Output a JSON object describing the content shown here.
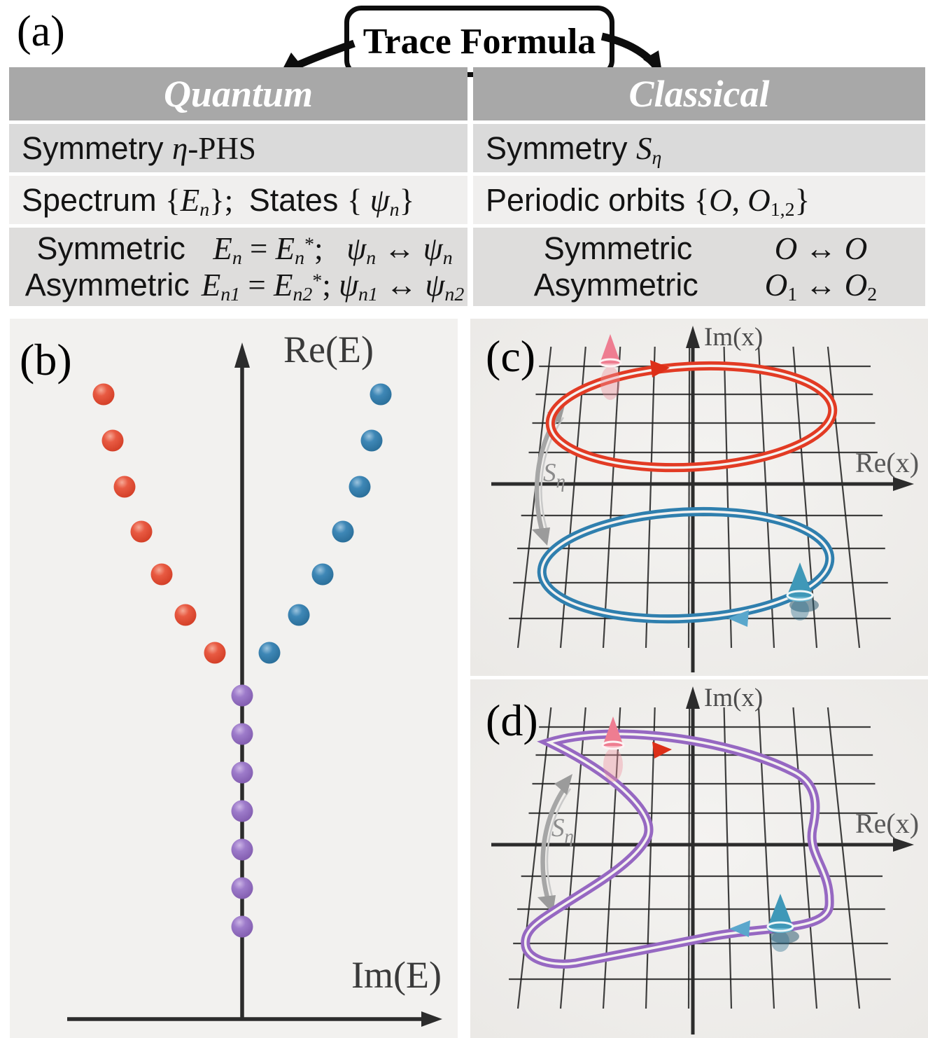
{
  "panel_a": {
    "label": "(a)",
    "box_title": "Trace Formula",
    "quantum": {
      "header": "Quantum",
      "row1": [
        {
          "t": "Symmetry  ",
          "f": "s"
        },
        {
          "t": "η",
          "f": "i"
        },
        {
          "t": "-PHS",
          "f": "r"
        }
      ],
      "row2": [
        {
          "t": "Spectrum ",
          "f": "s"
        },
        {
          "t": "{",
          "f": "r"
        },
        {
          "t": "E",
          "f": "i"
        },
        {
          "t": "n",
          "f": "isub"
        },
        {
          "t": "};  ",
          "f": "r"
        },
        {
          "t": "States ",
          "f": "s"
        },
        {
          "t": "{ ",
          "f": "r"
        },
        {
          "t": "ψ",
          "f": "i"
        },
        {
          "t": "n",
          "f": "isub"
        },
        {
          "t": "}",
          "f": "r"
        }
      ],
      "row3": {
        "line1": {
          "label": [
            {
              "t": "Symmetric",
              "f": "s"
            }
          ],
          "formula": [
            {
              "t": "E",
              "f": "i"
            },
            {
              "t": "n",
              "f": "isub"
            },
            {
              "t": " = ",
              "f": "r"
            },
            {
              "t": "E",
              "f": "i"
            },
            {
              "t": "n",
              "f": "isub"
            },
            {
              "t": "*",
              "f": "rsup"
            },
            {
              "t": ";   ",
              "f": "r"
            },
            {
              "t": "ψ",
              "f": "i"
            },
            {
              "t": "n",
              "f": "isub"
            },
            {
              "t": " ↔ ",
              "f": "r"
            },
            {
              "t": "ψ",
              "f": "i"
            },
            {
              "t": "n",
              "f": "isub"
            }
          ]
        },
        "line2": {
          "label": [
            {
              "t": "Asymmetric",
              "f": "s"
            }
          ],
          "formula": [
            {
              "t": "E",
              "f": "i"
            },
            {
              "t": "n1",
              "f": "isub"
            },
            {
              "t": " = ",
              "f": "r"
            },
            {
              "t": "E",
              "f": "i"
            },
            {
              "t": "n2",
              "f": "isub"
            },
            {
              "t": "*",
              "f": "rsup"
            },
            {
              "t": "; ",
              "f": "r"
            },
            {
              "t": "ψ",
              "f": "i"
            },
            {
              "t": "n1",
              "f": "isub"
            },
            {
              "t": " ↔ ",
              "f": "r"
            },
            {
              "t": "ψ",
              "f": "i"
            },
            {
              "t": "n2",
              "f": "isub"
            }
          ]
        }
      }
    },
    "classical": {
      "header": "Classical",
      "row1": [
        {
          "t": "Symmetry ",
          "f": "s"
        },
        {
          "t": "S",
          "f": "i"
        },
        {
          "t": "η",
          "f": "isub"
        }
      ],
      "row2": [
        {
          "t": "Periodic orbits ",
          "f": "s"
        },
        {
          "t": "{",
          "f": "r"
        },
        {
          "t": "O",
          "f": "i"
        },
        {
          "t": ", ",
          "f": "r"
        },
        {
          "t": "O",
          "f": "i"
        },
        {
          "t": "1,2",
          "f": "rsub"
        },
        {
          "t": "}",
          "f": "r"
        }
      ],
      "row3": {
        "line1": {
          "label": [
            {
              "t": "Symmetric",
              "f": "s"
            }
          ],
          "formula": [
            {
              "t": "O",
              "f": "i"
            },
            {
              "t": " ↔ ",
              "f": "r"
            },
            {
              "t": "O",
              "f": "i"
            }
          ]
        },
        "line2": {
          "label": [
            {
              "t": "Asymmetric",
              "f": "s"
            }
          ],
          "formula": [
            {
              "t": "O",
              "f": "i"
            },
            {
              "t": "1",
              "f": "rsub"
            },
            {
              "t": " ↔ ",
              "f": "r"
            },
            {
              "t": "O",
              "f": "i"
            },
            {
              "t": "2",
              "f": "rsub"
            }
          ]
        }
      }
    }
  },
  "panel_b": {
    "label": "(b)",
    "y_axis_label": "Re(E)",
    "x_axis_label": "Im(E)",
    "dots": {
      "radius": 15.5,
      "series": [
        {
          "name": "red-branch",
          "color": "red",
          "points": [
            [
              134,
              108
            ],
            [
              147,
              174
            ],
            [
              164,
              240
            ],
            [
              188,
              304
            ],
            [
              217,
              365
            ],
            [
              251,
              423
            ],
            [
              293,
              477
            ]
          ]
        },
        {
          "name": "blue-branch",
          "color": "blue",
          "points": [
            [
              530,
              108
            ],
            [
              517,
              174
            ],
            [
              500,
              240
            ],
            [
              476,
              304
            ],
            [
              447,
              365
            ],
            [
              413,
              423
            ],
            [
              371,
              477
            ]
          ]
        },
        {
          "name": "purple-axis",
          "color": "purple",
          "points": [
            [
              332,
              538
            ],
            [
              332,
              593
            ],
            [
              332,
              648
            ],
            [
              332,
              703
            ],
            [
              332,
              758
            ],
            [
              332,
              813
            ],
            [
              332,
              868
            ]
          ]
        }
      ]
    }
  },
  "panel_c": {
    "label": "(c)",
    "y_axis_label": "Im(x)",
    "x_axis_label": "Re(x)",
    "symmetry_label": {
      "main": "S",
      "sub": "η"
    }
  },
  "panel_d": {
    "label": "(d)",
    "y_axis_label": "Im(x)",
    "x_axis_label": "Re(x)",
    "symmetry_label": {
      "main": "S",
      "sub": "η"
    }
  },
  "colors": {
    "red": "#e23b24",
    "blue": "#2f7fae",
    "purple": "#9668c2",
    "table_header": "#a8a8a8",
    "row_gray": "#dadada",
    "row_light": "#f0efee",
    "panel_bg": "#f1f0ee",
    "grid": "#1e1e1e",
    "axis": "#2c2c2c",
    "axis_label_gray": "#4b4b4b",
    "symmetry_arrow_gray": "#a6a6a6"
  }
}
